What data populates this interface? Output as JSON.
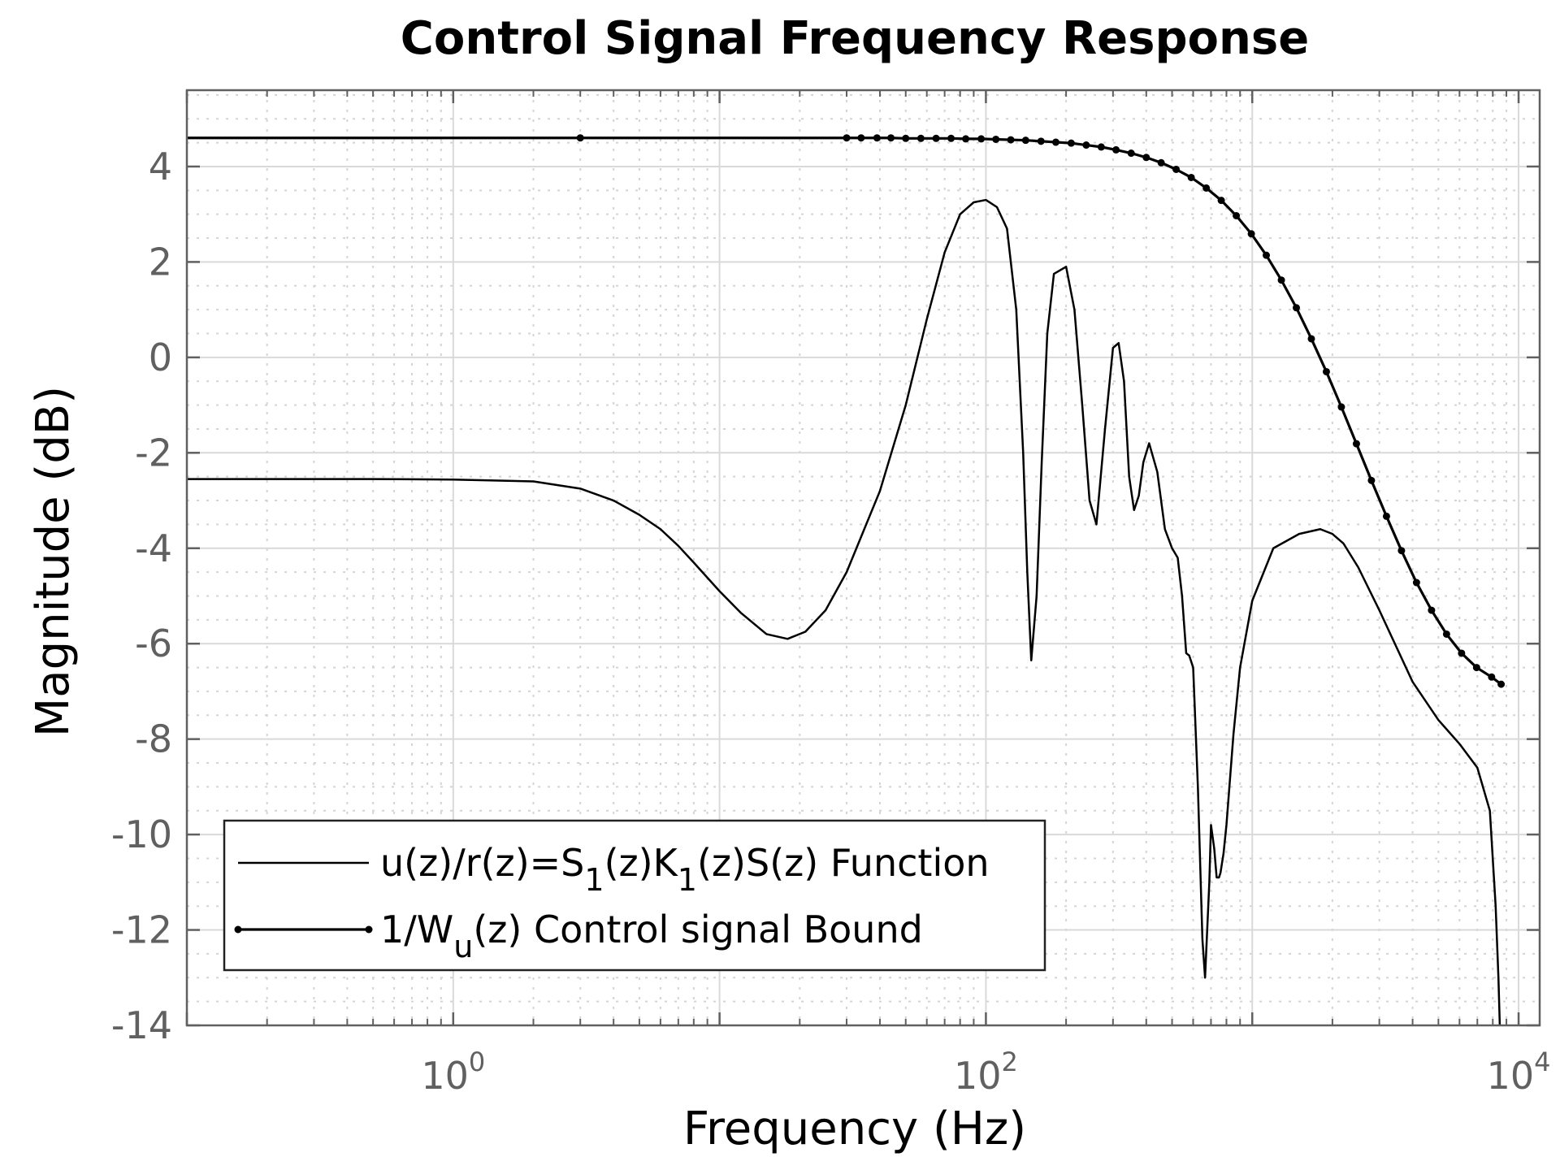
{
  "chart_data": {
    "type": "line",
    "title": "Control Signal Frequency Response",
    "xlabel": "Frequency  (Hz)",
    "ylabel": "Magnitude (dB)",
    "x_scale": "log",
    "xlim": [
      0.1,
      12000
    ],
    "ylim": [
      -14,
      5.6
    ],
    "grid": true,
    "minor_grid": true,
    "legend_position": "bottom-left",
    "x_ticks": [
      {
        "value": 1,
        "base": "10",
        "exp": "0"
      },
      {
        "value": 100,
        "base": "10",
        "exp": "2"
      },
      {
        "value": 10000,
        "base": "10",
        "exp": "4"
      }
    ],
    "y_ticks": [
      4,
      2,
      0,
      -2,
      -4,
      -6,
      -8,
      -10,
      -12,
      -14
    ],
    "y_tick_labels": [
      "4",
      "2",
      "0",
      "-2",
      "-4",
      "-6",
      "-8",
      "-10",
      "-12",
      "-14"
    ],
    "series": [
      {
        "name": "u(z)/r(z)=S1(z)K1(z)S(z) Function",
        "legend": {
          "parts": [
            {
              "t": "u(z)/r(z)=S"
            },
            {
              "t": "1",
              "sub": true
            },
            {
              "t": "(z)K"
            },
            {
              "t": "1",
              "sub": true
            },
            {
              "t": "(z)S(z) Function"
            }
          ]
        },
        "style": "solid",
        "color": "#000000",
        "x": [
          0.1,
          0.5,
          1,
          2,
          3,
          4,
          5,
          6,
          7,
          8,
          10,
          12,
          15,
          18,
          21,
          25,
          30,
          40,
          50,
          60,
          70,
          80,
          90,
          100,
          110,
          120,
          130,
          138,
          143,
          148,
          155,
          162,
          170,
          180,
          200,
          215,
          230,
          245,
          260,
          280,
          300,
          315,
          330,
          345,
          360,
          375,
          390,
          410,
          440,
          470,
          500,
          525,
          545,
          565,
          580,
          600,
          625,
          650,
          665,
          690,
          700,
          720,
          735,
          750,
          760,
          780,
          800,
          850,
          900,
          1000,
          1200,
          1500,
          1800,
          2000,
          2200,
          2500,
          3000,
          4000,
          5000,
          6000,
          7000,
          7800,
          8200,
          8400,
          8500,
          8550,
          8600
        ],
        "y": [
          -2.55,
          -2.55,
          -2.56,
          -2.6,
          -2.75,
          -3.0,
          -3.3,
          -3.6,
          -3.95,
          -4.3,
          -4.9,
          -5.35,
          -5.8,
          -5.9,
          -5.75,
          -5.3,
          -4.5,
          -2.8,
          -1.0,
          0.8,
          2.2,
          3.0,
          3.25,
          3.3,
          3.15,
          2.7,
          1.0,
          -2.0,
          -4.5,
          -6.35,
          -5.0,
          -2.2,
          0.5,
          1.75,
          1.9,
          1.0,
          -1.0,
          -3.0,
          -3.5,
          -1.5,
          0.2,
          0.3,
          -0.5,
          -2.5,
          -3.2,
          -2.9,
          -2.2,
          -1.8,
          -2.4,
          -3.6,
          -4.0,
          -4.2,
          -5.0,
          -6.2,
          -6.25,
          -6.5,
          -9.0,
          -12.2,
          -13.0,
          -11.0,
          -9.8,
          -10.3,
          -10.9,
          -10.9,
          -10.8,
          -10.4,
          -9.8,
          -7.9,
          -6.5,
          -5.1,
          -4.0,
          -3.7,
          -3.6,
          -3.7,
          -3.9,
          -4.4,
          -5.3,
          -6.8,
          -7.6,
          -8.1,
          -8.6,
          -9.5,
          -11.5,
          -13.0,
          -14.0,
          -14.4,
          -14.4
        ]
      },
      {
        "name": "1/Wu(z) Control signal Bound",
        "legend": {
          "parts": [
            {
              "t": "1/W"
            },
            {
              "t": "u",
              "sub": true
            },
            {
              "t": "(z) Control signal Bound"
            }
          ]
        },
        "style": "solid-with-markers",
        "color": "#000000",
        "x": [
          0.1,
          3,
          30,
          34,
          39,
          44,
          50,
          57,
          65,
          74,
          84,
          96,
          109,
          124,
          141,
          161,
          183,
          209,
          238,
          271,
          308,
          351,
          400,
          455,
          518,
          590,
          672,
          765,
          871,
          992,
          1129,
          1286,
          1464,
          1667,
          1898,
          2161,
          2461,
          2802,
          3191,
          3633,
          4137,
          4711,
          5364,
          6108,
          6955,
          7920,
          8600
        ],
        "y": [
          4.6,
          4.6,
          4.6,
          4.6,
          4.6,
          4.6,
          4.59,
          4.59,
          4.59,
          4.59,
          4.58,
          4.58,
          4.57,
          4.56,
          4.55,
          4.53,
          4.51,
          4.49,
          4.45,
          4.41,
          4.35,
          4.28,
          4.19,
          4.08,
          3.94,
          3.77,
          3.55,
          3.29,
          2.97,
          2.59,
          2.14,
          1.62,
          1.04,
          0.39,
          -0.3,
          -1.04,
          -1.81,
          -2.58,
          -3.33,
          -4.05,
          -4.72,
          -5.3,
          -5.8,
          -6.2,
          -6.5,
          -6.7,
          -6.85
        ]
      }
    ]
  }
}
